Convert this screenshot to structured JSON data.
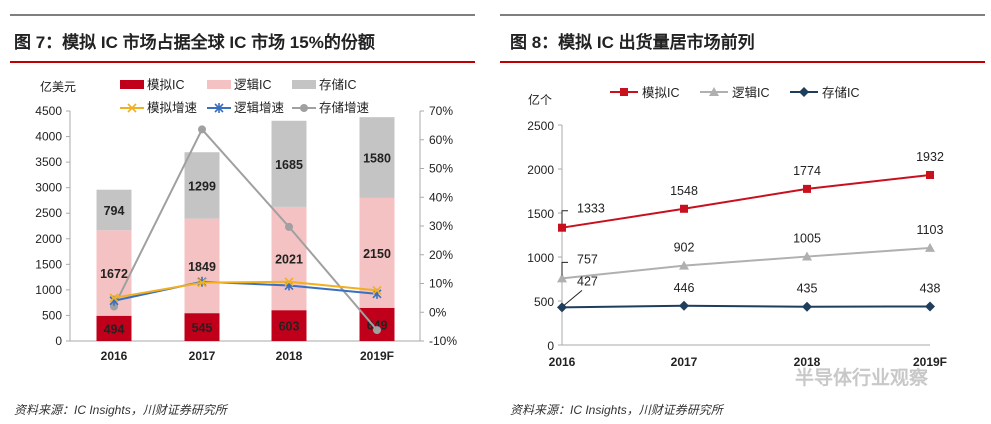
{
  "chart_data": [
    {
      "type": "bar",
      "title": "图 7：模拟 IC 市场占据全球 IC 市场 15%的份额",
      "ylabel": "亿美元",
      "categories": [
        "2016",
        "2017",
        "2018",
        "2019F"
      ],
      "ylim": [
        0,
        4500
      ],
      "yticks": [
        "0",
        "500",
        "1000",
        "1500",
        "2000",
        "2500",
        "3000",
        "3500",
        "4000",
        "4500"
      ],
      "y2lim": [
        -10,
        70
      ],
      "y2ticks": [
        "-10%",
        "0%",
        "10%",
        "20%",
        "30%",
        "40%",
        "50%",
        "60%",
        "70%"
      ],
      "stacked": true,
      "series": [
        {
          "name": "模拟IC",
          "values": [
            494,
            545,
            603,
            649
          ],
          "color": "#c0001a"
        },
        {
          "name": "逻辑IC",
          "values": [
            1672,
            1849,
            2021,
            2150
          ],
          "color": "#f4c2c2"
        },
        {
          "name": "存储IC",
          "values": [
            794,
            1299,
            1685,
            1580
          ],
          "color": "#c4c4c4"
        }
      ],
      "line_series": [
        {
          "name": "模拟增速",
          "values": [
            5,
            10.3,
            10.6,
            7.6
          ],
          "color": "#f0b020",
          "marker": "x"
        },
        {
          "name": "逻辑增速",
          "values": [
            4,
            10.6,
            9.3,
            6.4
          ],
          "color": "#3a6fc0",
          "marker": "asterisk"
        },
        {
          "name": "存储增速",
          "values": [
            2,
            63.6,
            29.7,
            -6.2
          ],
          "color": "#a0a0a0",
          "marker": "circle"
        }
      ],
      "legend": "top",
      "grid": false,
      "source": "资料来源：IC Insights，川财证券研究所"
    },
    {
      "type": "line",
      "title": "图 8：模拟 IC 出货量居市场前列",
      "ylabel": "亿个",
      "categories": [
        "2016",
        "2017",
        "2018",
        "2019F"
      ],
      "ylim": [
        0,
        2500
      ],
      "yticks": [
        "0",
        "500",
        "1000",
        "1500",
        "2000",
        "2500"
      ],
      "series": [
        {
          "name": "模拟IC",
          "values": [
            1333,
            1548,
            1774,
            1932
          ],
          "color": "#c8101e",
          "marker": "square"
        },
        {
          "name": "逻辑IC",
          "values": [
            757,
            902,
            1005,
            1103
          ],
          "color": "#b0b0b0",
          "marker": "triangle"
        },
        {
          "name": "存储IC",
          "values": [
            427,
            446,
            435,
            438
          ],
          "color": "#1f3d5c",
          "marker": "diamond"
        }
      ],
      "legend": "top",
      "grid": false,
      "source": "资料来源：IC Insights，川财证券研究所"
    }
  ],
  "watermark": "半导体行业观察"
}
